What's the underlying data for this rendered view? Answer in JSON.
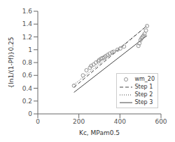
{
  "chart_data": {
    "type": "scatter",
    "xlabel": "Kc, MPam0.5",
    "ylabel": "{ln1/(1-Pf)}0.25",
    "xlim": [
      0,
      600
    ],
    "ylim": [
      0,
      1.6
    ],
    "xticks": [
      0,
      200,
      400,
      600
    ],
    "yticks": [
      0,
      0.2,
      0.4,
      0.6,
      0.8,
      1,
      1.2,
      1.4,
      1.6
    ],
    "grid": false,
    "legend": "lower right",
    "series": [
      {
        "name": "wm_20",
        "type": "scatter",
        "marker": "circle",
        "color": "#888888",
        "x": [
          176,
          220,
          237,
          254,
          260,
          272,
          283,
          295,
          299,
          308,
          315,
          323,
          330,
          340,
          350,
          362,
          370,
          388,
          402,
          420,
          490,
          495,
          500,
          505,
          510,
          515,
          520,
          527,
          532
        ],
        "values": [
          0.44,
          0.6,
          0.68,
          0.72,
          0.75,
          0.77,
          0.8,
          0.82,
          0.84,
          0.86,
          0.87,
          0.88,
          0.9,
          0.92,
          0.94,
          0.96,
          0.97,
          1.0,
          1.02,
          1.05,
          1.06,
          1.1,
          1.15,
          1.18,
          1.2,
          1.22,
          1.25,
          1.3,
          1.37
        ]
      },
      {
        "name": "Step 1",
        "type": "line",
        "line_style": "dashed",
        "color": "#444444",
        "x": [
          176,
          532
        ],
        "values": [
          0.415,
          1.375
        ]
      },
      {
        "name": "Step 2",
        "type": "line",
        "line_style": "dotted",
        "color": "#444444",
        "x": [
          176,
          532
        ],
        "values": [
          0.455,
          1.375
        ]
      },
      {
        "name": "Step 3",
        "type": "line",
        "line_style": "solid",
        "color": "#444444",
        "x": [
          176,
          532
        ],
        "values": [
          0.335,
          1.22
        ]
      }
    ]
  }
}
